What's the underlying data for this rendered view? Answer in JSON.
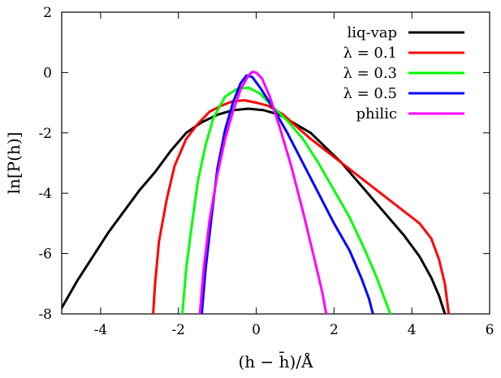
{
  "chart_data": {
    "type": "line",
    "title": "",
    "xlabel": "(h − h̄)/Å",
    "ylabel": "ln[P(h)]",
    "xlim": [
      -5,
      6
    ],
    "ylim": [
      -8,
      2
    ],
    "xticks": [
      -4,
      -2,
      0,
      2,
      4,
      6
    ],
    "yticks": [
      -8,
      -6,
      -4,
      -2,
      0,
      2
    ],
    "xtick_labels": [
      "-4",
      "-2",
      "0",
      "2",
      "4",
      "6"
    ],
    "ytick_labels": [
      "-8",
      "-6",
      "-4",
      "-2",
      "0",
      "2"
    ],
    "grid": false,
    "legend_position": "top-right",
    "series": [
      {
        "name": "liq-vap",
        "color": "#000000",
        "x": [
          -5.0,
          -4.6,
          -4.2,
          -3.8,
          -3.4,
          -3.0,
          -2.6,
          -2.2,
          -1.8,
          -1.4,
          -1.0,
          -0.6,
          -0.2,
          0.2,
          0.6,
          1.0,
          1.4,
          1.8,
          2.2,
          2.6,
          3.0,
          3.4,
          3.8,
          4.2,
          4.5,
          4.7,
          4.85
        ],
        "y": [
          -7.8,
          -6.9,
          -6.1,
          -5.3,
          -4.6,
          -3.9,
          -3.3,
          -2.6,
          -2.0,
          -1.65,
          -1.4,
          -1.25,
          -1.2,
          -1.25,
          -1.4,
          -1.7,
          -2.0,
          -2.5,
          -3.0,
          -3.6,
          -4.2,
          -4.8,
          -5.4,
          -6.1,
          -6.8,
          -7.4,
          -8.0
        ]
      },
      {
        "name": "λ = 0.1",
        "color": "#ff0000",
        "x": [
          -2.65,
          -2.6,
          -2.5,
          -2.3,
          -2.1,
          -1.8,
          -1.5,
          -1.2,
          -0.9,
          -0.6,
          -0.3,
          0.0,
          0.3,
          0.7,
          1.0,
          1.4,
          1.8,
          2.2,
          2.6,
          3.0,
          3.4,
          3.8,
          4.2,
          4.5,
          4.7,
          4.85,
          4.95
        ],
        "y": [
          -8.0,
          -7.0,
          -5.6,
          -4.2,
          -3.1,
          -2.2,
          -1.7,
          -1.3,
          -1.1,
          -0.95,
          -0.92,
          -1.0,
          -1.1,
          -1.4,
          -1.75,
          -2.2,
          -2.6,
          -3.0,
          -3.4,
          -3.8,
          -4.2,
          -4.6,
          -5.0,
          -5.5,
          -6.2,
          -7.0,
          -8.0
        ]
      },
      {
        "name": "λ = 0.3",
        "color": "#00ff00",
        "x": [
          -1.9,
          -1.8,
          -1.65,
          -1.5,
          -1.3,
          -1.1,
          -0.8,
          -0.5,
          -0.2,
          0.1,
          0.4,
          0.8,
          1.2,
          1.6,
          2.0,
          2.4,
          2.8,
          3.1,
          3.3,
          3.45
        ],
        "y": [
          -8.0,
          -6.5,
          -5.0,
          -3.6,
          -2.4,
          -1.5,
          -0.8,
          -0.55,
          -0.5,
          -0.7,
          -1.1,
          -1.6,
          -2.2,
          -3.0,
          -3.9,
          -4.8,
          -5.9,
          -6.8,
          -7.5,
          -8.0
        ]
      },
      {
        "name": "λ = 0.5",
        "color": "#0000ff",
        "x": [
          -1.4,
          -1.3,
          -1.15,
          -1.0,
          -0.8,
          -0.6,
          -0.4,
          -0.25,
          -0.1,
          0.1,
          0.4,
          0.8,
          1.2,
          1.6,
          2.0,
          2.4,
          2.7,
          2.9,
          3.0
        ],
        "y": [
          -8.0,
          -6.5,
          -4.8,
          -3.2,
          -1.9,
          -1.0,
          -0.35,
          -0.1,
          -0.15,
          -0.5,
          -1.1,
          -2.0,
          -3.0,
          -4.0,
          -5.0,
          -5.9,
          -6.8,
          -7.5,
          -8.0
        ]
      },
      {
        "name": "philic",
        "color": "#ff00ff",
        "x": [
          -1.45,
          -1.35,
          -1.2,
          -1.0,
          -0.8,
          -0.6,
          -0.4,
          -0.2,
          -0.1,
          0.0,
          0.15,
          0.35,
          0.6,
          0.9,
          1.2,
          1.5,
          1.7,
          1.8
        ],
        "y": [
          -8.0,
          -6.5,
          -4.9,
          -3.4,
          -2.2,
          -1.3,
          -0.55,
          -0.1,
          0.02,
          0.0,
          -0.2,
          -0.8,
          -1.8,
          -3.1,
          -4.6,
          -6.2,
          -7.3,
          -8.0
        ]
      }
    ]
  }
}
